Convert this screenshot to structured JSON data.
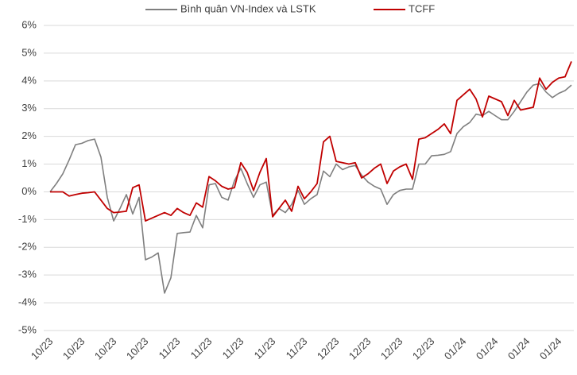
{
  "chart_data": {
    "type": "line",
    "categories": [
      "10/23",
      null,
      null,
      null,
      null,
      "10/23",
      null,
      null,
      null,
      null,
      "10/23",
      null,
      null,
      null,
      null,
      "10/23",
      null,
      null,
      null,
      null,
      "11/23",
      null,
      null,
      null,
      null,
      "11/23",
      null,
      null,
      null,
      null,
      "11/23",
      null,
      null,
      null,
      null,
      "11/23",
      null,
      null,
      null,
      null,
      "11/23",
      null,
      null,
      null,
      null,
      "12/23",
      null,
      null,
      null,
      null,
      "12/23",
      null,
      null,
      null,
      null,
      "12/23",
      null,
      null,
      null,
      null,
      "12/23",
      null,
      null,
      null,
      null,
      "01/24",
      null,
      null,
      null,
      null,
      "01/24",
      null,
      null,
      null,
      null,
      "01/24",
      null,
      null,
      null,
      null,
      "01/24",
      null,
      null
    ],
    "series": [
      {
        "name": "Bình quân VN-Index và LSTK",
        "color": "#7f7f7f",
        "values": [
          0,
          0.3,
          0.65,
          1.15,
          1.7,
          1.75,
          1.85,
          1.9,
          1.25,
          -0.2,
          -1.05,
          -0.6,
          -0.1,
          -0.8,
          -0.2,
          -2.45,
          -2.35,
          -2.2,
          -3.65,
          -3.1,
          -1.5,
          -1.47,
          -1.45,
          -0.85,
          -1.3,
          0.25,
          0.3,
          -0.2,
          -0.3,
          0.4,
          0.85,
          0.3,
          -0.2,
          0.25,
          0.35,
          -0.85,
          -0.6,
          -0.75,
          -0.45,
          0.05,
          -0.45,
          -0.25,
          -0.1,
          0.75,
          0.55,
          1.0,
          0.8,
          0.9,
          0.95,
          0.6,
          0.35,
          0.2,
          0.1,
          -0.45,
          -0.1,
          0.05,
          0.1,
          0.1,
          1.0,
          1.0,
          1.3,
          1.32,
          1.35,
          1.45,
          2.1,
          2.35,
          2.5,
          2.8,
          2.75,
          2.9,
          2.75,
          2.6,
          2.6,
          2.9,
          3.25,
          3.6,
          3.85,
          3.9,
          3.6,
          3.4,
          3.55,
          3.65,
          3.85
        ]
      },
      {
        "name": "TCFF",
        "color": "#c00000",
        "values": [
          0,
          0,
          0,
          -0.15,
          -0.1,
          -0.05,
          -0.03,
          0,
          -0.3,
          -0.6,
          -0.75,
          -0.73,
          -0.7,
          0.15,
          0.25,
          -1.05,
          -0.95,
          -0.85,
          -0.75,
          -0.85,
          -0.6,
          -0.75,
          -0.85,
          -0.4,
          -0.55,
          0.55,
          0.4,
          0.2,
          0.1,
          0.15,
          1.05,
          0.7,
          0.05,
          0.7,
          1.2,
          -0.9,
          -0.6,
          -0.3,
          -0.7,
          0.2,
          -0.25,
          0,
          0.3,
          1.8,
          2.0,
          1.1,
          1.05,
          1.0,
          1.05,
          0.5,
          0.65,
          0.85,
          1.0,
          0.3,
          0.75,
          0.9,
          1.0,
          0.45,
          1.9,
          1.95,
          2.1,
          2.25,
          2.45,
          2.1,
          3.3,
          3.5,
          3.7,
          3.35,
          2.7,
          3.45,
          3.35,
          3.25,
          2.75,
          3.3,
          2.95,
          3.0,
          3.05,
          4.1,
          3.7,
          3.95,
          4.1,
          4.15,
          4.7
        ]
      }
    ],
    "ylim": [
      -5,
      6
    ],
    "yticks": [
      {
        "value": -5,
        "label": "-5%"
      },
      {
        "value": -4,
        "label": "-4%"
      },
      {
        "value": -3,
        "label": "-3%"
      },
      {
        "value": -2,
        "label": "-2%"
      },
      {
        "value": -1,
        "label": "-1%"
      },
      {
        "value": 0,
        "label": "0%"
      },
      {
        "value": 1,
        "label": "1%"
      },
      {
        "value": 2,
        "label": "2%"
      },
      {
        "value": 3,
        "label": "3%"
      },
      {
        "value": 4,
        "label": "4%"
      },
      {
        "value": 5,
        "label": "5%"
      },
      {
        "value": 6,
        "label": "6%"
      }
    ],
    "grid": true,
    "legend": "top"
  }
}
